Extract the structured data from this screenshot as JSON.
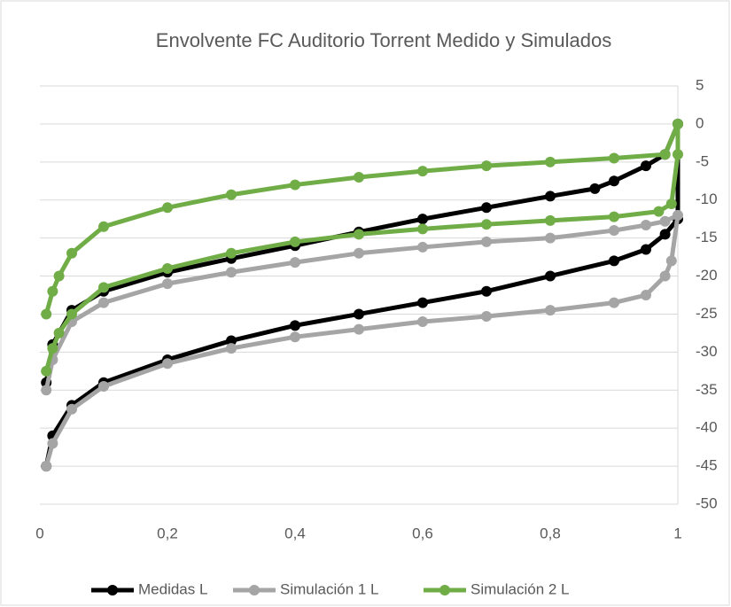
{
  "chart_data": {
    "type": "line",
    "title": "Envolvente FC Auditorio Torrent Medido y Simulados",
    "xlim": [
      0,
      1
    ],
    "xticks": [
      0,
      {
        "value": 0.2,
        "label": "0,2"
      },
      {
        "value": 0.4,
        "label": "0,4"
      },
      {
        "value": 0.6,
        "label": "0,6"
      },
      {
        "value": 0.8,
        "label": "0,8"
      },
      1
    ],
    "ylim": [
      -50,
      5
    ],
    "yticks": [
      5,
      0,
      -5,
      -10,
      -15,
      -20,
      -25,
      -30,
      -35,
      -40,
      -45,
      -50
    ],
    "grid": true,
    "legend": "bottom",
    "series": [
      {
        "name": "Medidas L",
        "color": "#000000",
        "x": [
          0.01,
          0.02,
          0.05,
          0.1,
          0.2,
          0.3,
          0.4,
          0.5,
          0.6,
          0.7,
          0.8,
          0.9,
          0.95,
          0.98,
          1,
          1,
          0.98,
          0.95,
          0.9,
          0.87,
          0.8,
          0.7,
          0.6,
          0.5,
          0.4,
          0.3,
          0.2,
          0.1,
          0.05,
          0.02,
          0.01
        ],
        "values": [
          -45,
          -41,
          -37,
          -34,
          -31,
          -28.5,
          -26.5,
          -25,
          -23.5,
          -22,
          -20,
          -18,
          -16.5,
          -14.5,
          -12.5,
          0,
          -4,
          -5.5,
          -7.5,
          -8.5,
          -9.5,
          -11,
          -12.5,
          -14.2,
          -16,
          -17.7,
          -19.5,
          -22,
          -24.5,
          -29,
          -34
        ]
      },
      {
        "name": "Simulación 1 L",
        "color": "#a5a5a5",
        "x": [
          0.01,
          0.02,
          0.05,
          0.1,
          0.2,
          0.3,
          0.4,
          0.5,
          0.6,
          0.7,
          0.8,
          0.9,
          0.95,
          0.98,
          0.99,
          1,
          0.98,
          0.95,
          0.9,
          0.8,
          0.7,
          0.6,
          0.5,
          0.4,
          0.3,
          0.2,
          0.1,
          0.05,
          0.02,
          0.01
        ],
        "values": [
          -45,
          -42,
          -37.5,
          -34.5,
          -31.5,
          -29.5,
          -28,
          -27,
          -26,
          -25.3,
          -24.5,
          -23.5,
          -22.5,
          -20,
          -18,
          -12,
          -12.8,
          -13.3,
          -14,
          -15,
          -15.5,
          -16.2,
          -17,
          -18.2,
          -19.5,
          -21,
          -23.5,
          -26,
          -31,
          -35
        ]
      },
      {
        "name": "Simulación 2 L",
        "color": "#70ad47",
        "x": [
          0.01,
          0.02,
          0.03,
          0.05,
          0.1,
          0.2,
          0.3,
          0.4,
          0.5,
          0.6,
          0.7,
          0.8,
          0.9,
          0.97,
          0.99,
          1,
          1,
          0.98,
          0.9,
          0.8,
          0.7,
          0.6,
          0.5,
          0.4,
          0.3,
          0.2,
          0.1,
          0.05,
          0.03,
          0.02,
          0.01
        ],
        "values": [
          -32.5,
          -29.5,
          -27.5,
          -25,
          -21.5,
          -19,
          -17,
          -15.5,
          -14.5,
          -13.8,
          -13.2,
          -12.7,
          -12.2,
          -11.5,
          -10.5,
          -4,
          0,
          -4,
          -4.5,
          -5,
          -5.5,
          -6.2,
          -7,
          -8,
          -9.3,
          -11,
          -13.5,
          -17,
          -20,
          -22,
          -25
        ]
      }
    ]
  }
}
